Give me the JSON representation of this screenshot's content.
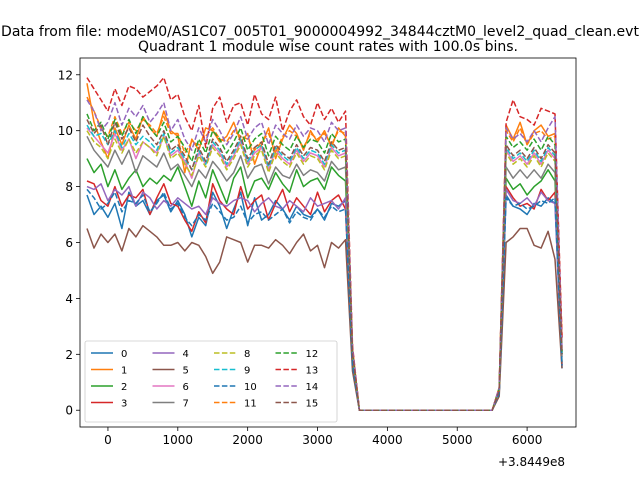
{
  "suptitle": "Data from file: modeM0/AS1C07_005T01_9000004992_34844cztM0_level2_quad_clean.evt",
  "chart_data": {
    "type": "line",
    "title": "Quadrant 1 module wise count rates with 100.0s bins.",
    "xlabel": "",
    "ylabel": "",
    "x_offset_label": "+3.8449e8",
    "xlim": [
      -400,
      6700
    ],
    "ylim": [
      -0.6,
      12.6
    ],
    "xticks": [
      0,
      1000,
      2000,
      3000,
      4000,
      5000,
      6000
    ],
    "yticks": [
      0,
      2,
      4,
      6,
      8,
      10,
      12
    ],
    "grid": false,
    "legend_position": "lower-left",
    "legend_columns": 4,
    "x": [
      -300,
      -200,
      -100,
      0,
      100,
      200,
      300,
      400,
      500,
      600,
      700,
      800,
      900,
      1000,
      1100,
      1200,
      1300,
      1400,
      1500,
      1600,
      1700,
      1800,
      1900,
      2000,
      2100,
      2200,
      2300,
      2400,
      2500,
      2600,
      2700,
      2800,
      2900,
      3000,
      3100,
      3200,
      3300,
      3400,
      3500,
      3600,
      3700,
      3800,
      3900,
      4000,
      4100,
      4200,
      4300,
      4400,
      4500,
      4600,
      4700,
      4800,
      4900,
      5000,
      5100,
      5200,
      5300,
      5400,
      5500,
      5600,
      5700,
      5800,
      5900,
      6000,
      6100,
      6200,
      6300,
      6400,
      6500
    ],
    "series": [
      {
        "name": "0",
        "color": "#1f77b4",
        "dash": "solid",
        "values": [
          7.7,
          7.0,
          7.3,
          6.9,
          7.4,
          6.5,
          7.8,
          7.3,
          7.5,
          7.0,
          7.5,
          7.7,
          7.1,
          7.5,
          7.0,
          6.2,
          6.9,
          6.6,
          7.8,
          7.3,
          6.5,
          7.2,
          7.8,
          6.6,
          7.6,
          6.8,
          7.0,
          7.5,
          7.2,
          6.8,
          7.3,
          7.0,
          6.9,
          7.2,
          6.8,
          7.4,
          7.3,
          7.5,
          1.6,
          0,
          0,
          0,
          0,
          0,
          0,
          0,
          0,
          0,
          0,
          0,
          0,
          0,
          0,
          0,
          0,
          0,
          0,
          0,
          0,
          0.6,
          7.7,
          7.3,
          7.2,
          7.0,
          7.4,
          7.3,
          7.6,
          7.4,
          1.5
        ]
      },
      {
        "name": "1",
        "color": "#ff7f0e",
        "dash": "solid",
        "values": [
          11.7,
          10.3,
          9.6,
          9.0,
          10.1,
          9.5,
          10.2,
          9.7,
          10.5,
          10.1,
          9.8,
          10.7,
          10.0,
          9.8,
          8.5,
          9.7,
          9.3,
          10.1,
          10.0,
          9.6,
          9.8,
          10.3,
          9.6,
          9.9,
          8.8,
          9.5,
          10.1,
          9.0,
          9.7,
          10.2,
          9.9,
          9.3,
          10.0,
          9.6,
          10.0,
          9.4,
          10.1,
          9.8,
          2.2,
          0,
          0,
          0,
          0,
          0,
          0,
          0,
          0,
          0,
          0,
          0,
          0,
          0,
          0,
          0,
          0,
          0,
          0,
          0,
          0,
          0.8,
          10.2,
          9.7,
          10.3,
          9.5,
          10.0,
          10.2,
          9.8,
          9.9,
          2.6
        ]
      },
      {
        "name": "2",
        "color": "#2ca02c",
        "dash": "solid",
        "values": [
          9.0,
          8.5,
          8.8,
          8.0,
          8.6,
          7.9,
          8.3,
          8.6,
          8.0,
          8.3,
          8.1,
          8.4,
          8.2,
          8.7,
          8.0,
          7.3,
          8.2,
          7.6,
          8.6,
          8.0,
          7.4,
          8.3,
          8.7,
          7.6,
          8.2,
          8.3,
          7.9,
          8.5,
          8.1,
          7.8,
          8.6,
          8.0,
          8.2,
          8.3,
          7.9,
          8.7,
          8.4,
          8.2,
          1.8,
          0,
          0,
          0,
          0,
          0,
          0,
          0,
          0,
          0,
          0,
          0,
          0,
          0,
          0,
          0,
          0,
          0,
          0,
          0,
          0,
          0.7,
          8.3,
          7.9,
          8.1,
          7.7,
          8.0,
          8.2,
          8.6,
          8.2,
          1.7
        ]
      },
      {
        "name": "3",
        "color": "#d62728",
        "dash": "solid",
        "values": [
          8.2,
          8.1,
          7.5,
          7.3,
          8.0,
          7.3,
          7.7,
          7.6,
          7.9,
          7.0,
          7.6,
          8.1,
          7.4,
          7.3,
          6.8,
          6.4,
          7.1,
          6.7,
          8.1,
          7.5,
          7.2,
          7.0,
          8.0,
          7.2,
          7.5,
          7.7,
          6.8,
          7.4,
          7.9,
          7.1,
          7.6,
          7.3,
          7.0,
          7.8,
          7.1,
          7.5,
          7.7,
          7.2,
          1.7,
          0,
          0,
          0,
          0,
          0,
          0,
          0,
          0,
          0,
          0,
          0,
          0,
          0,
          0,
          0,
          0,
          0,
          0,
          0,
          0,
          0.7,
          8.0,
          7.6,
          7.3,
          7.4,
          7.2,
          7.9,
          7.5,
          7.8,
          1.6
        ]
      },
      {
        "name": "4",
        "color": "#9467bd",
        "dash": "solid",
        "values": [
          8.0,
          7.9,
          8.1,
          7.5,
          7.9,
          7.7,
          8.0,
          7.3,
          7.8,
          7.6,
          7.2,
          7.5,
          7.3,
          7.6,
          7.4,
          7.2,
          7.3,
          7.0,
          7.6,
          7.4,
          7.3,
          7.5,
          7.6,
          7.5,
          7.1,
          7.4,
          7.6,
          7.3,
          7.2,
          7.5,
          7.3,
          7.1,
          7.6,
          7.3,
          7.4,
          7.5,
          7.2,
          7.6,
          1.7,
          0,
          0,
          0,
          0,
          0,
          0,
          0,
          0,
          0,
          0,
          0,
          0,
          0,
          0,
          0,
          0,
          0,
          0,
          0,
          0,
          0.7,
          7.9,
          7.5,
          7.4,
          7.6,
          7.3,
          7.8,
          7.5,
          7.4,
          1.6
        ]
      },
      {
        "name": "5",
        "color": "#8c564b",
        "dash": "solid",
        "values": [
          6.5,
          5.8,
          6.3,
          6.0,
          6.3,
          5.7,
          6.5,
          6.2,
          6.6,
          6.4,
          6.2,
          5.9,
          5.9,
          6.0,
          5.7,
          6.0,
          5.9,
          5.5,
          4.9,
          5.3,
          6.2,
          6.1,
          6.0,
          5.3,
          5.9,
          5.9,
          5.8,
          6.1,
          5.9,
          5.6,
          6.0,
          6.3,
          5.7,
          5.9,
          5.1,
          6.0,
          5.8,
          6.1,
          1.4,
          0,
          0,
          0,
          0,
          0,
          0,
          0,
          0,
          0,
          0,
          0,
          0,
          0,
          0,
          0,
          0,
          0,
          0,
          0,
          0,
          0.5,
          6.0,
          6.2,
          6.5,
          6.5,
          5.9,
          5.8,
          6.4,
          5.4,
          1.5
        ]
      },
      {
        "name": "6",
        "color": "#e377c2",
        "dash": "solid",
        "values": [
          10.1,
          9.8,
          9.5,
          9.2,
          9.9,
          9.3,
          9.7,
          9.0,
          9.6,
          9.4,
          9.2,
          9.8,
          9.1,
          9.3,
          8.9,
          8.3,
          9.2,
          8.8,
          9.5,
          9.2,
          8.7,
          9.1,
          9.6,
          8.8,
          9.2,
          9.4,
          8.6,
          9.3,
          9.0,
          8.8,
          9.3,
          8.9,
          9.2,
          9.1,
          8.7,
          9.4,
          9.1,
          9.2,
          2.0,
          0,
          0,
          0,
          0,
          0,
          0,
          0,
          0,
          0,
          0,
          0,
          0,
          0,
          0,
          0,
          0,
          0,
          0,
          0,
          0,
          0.7,
          9.3,
          8.9,
          9.1,
          8.8,
          9.2,
          8.8,
          9.3,
          9.0,
          2.0
        ]
      },
      {
        "name": "7",
        "color": "#7f7f7f",
        "dash": "solid",
        "values": [
          9.8,
          9.3,
          9.0,
          8.7,
          9.3,
          8.8,
          9.3,
          8.5,
          9.1,
          8.9,
          8.7,
          9.2,
          8.6,
          8.8,
          8.4,
          8.0,
          8.6,
          8.3,
          8.9,
          8.6,
          8.2,
          8.5,
          9.1,
          8.3,
          8.7,
          8.8,
          8.1,
          8.7,
          8.4,
          8.3,
          8.8,
          8.4,
          8.6,
          8.5,
          8.2,
          8.9,
          8.6,
          8.7,
          1.9,
          0,
          0,
          0,
          0,
          0,
          0,
          0,
          0,
          0,
          0,
          0,
          0,
          0,
          0,
          0,
          0,
          0,
          0,
          0,
          0,
          0.7,
          8.7,
          8.3,
          8.6,
          8.3,
          8.6,
          8.3,
          8.8,
          8.5,
          1.9
        ]
      },
      {
        "name": "8",
        "color": "#bcbd22",
        "dash": "dashed",
        "values": [
          10.0,
          9.6,
          9.4,
          9.0,
          9.7,
          9.2,
          9.7,
          9.2,
          9.6,
          9.4,
          9.1,
          9.8,
          9.0,
          9.2,
          8.8,
          8.4,
          9.1,
          8.7,
          9.4,
          9.1,
          8.6,
          9.0,
          9.5,
          8.7,
          9.1,
          9.3,
          8.5,
          9.2,
          8.9,
          8.7,
          9.2,
          8.8,
          9.1,
          9.0,
          8.6,
          9.3,
          9.0,
          9.1,
          2.0,
          0,
          0,
          0,
          0,
          0,
          0,
          0,
          0,
          0,
          0,
          0,
          0,
          0,
          0,
          0,
          0,
          0,
          0,
          0,
          0,
          0.7,
          9.2,
          8.8,
          9.0,
          8.7,
          9.1,
          8.7,
          9.2,
          8.9,
          2.0
        ]
      },
      {
        "name": "9",
        "color": "#17becf",
        "dash": "dashed",
        "values": [
          10.2,
          9.8,
          9.9,
          9.5,
          10.0,
          9.4,
          9.9,
          9.5,
          9.8,
          9.6,
          9.3,
          9.9,
          9.2,
          9.4,
          9.0,
          8.6,
          9.3,
          8.8,
          9.6,
          9.3,
          8.8,
          9.2,
          9.7,
          8.9,
          9.3,
          9.5,
          8.7,
          9.4,
          9.1,
          8.9,
          9.4,
          9.0,
          9.3,
          9.2,
          8.8,
          9.5,
          9.2,
          9.3,
          2.0,
          0,
          0,
          0,
          0,
          0,
          0,
          0,
          0,
          0,
          0,
          0,
          0,
          0,
          0,
          0,
          0,
          0,
          0,
          0,
          0,
          0.7,
          9.4,
          9.0,
          9.2,
          8.9,
          9.3,
          8.9,
          9.4,
          9.1,
          2.0
        ]
      },
      {
        "name": "10",
        "color": "#1f77b4",
        "dash": "dashed",
        "values": [
          7.9,
          7.6,
          7.2,
          7.4,
          7.8,
          7.1,
          7.5,
          7.4,
          7.7,
          7.1,
          7.4,
          7.8,
          7.2,
          7.4,
          6.9,
          6.6,
          7.0,
          6.8,
          7.4,
          7.1,
          6.8,
          6.9,
          7.3,
          6.7,
          7.0,
          7.1,
          6.8,
          7.0,
          7.2,
          6.7,
          7.1,
          6.9,
          6.8,
          7.2,
          6.9,
          7.3,
          7.1,
          7.2,
          1.6,
          0,
          0,
          0,
          0,
          0,
          0,
          0,
          0,
          0,
          0,
          0,
          0,
          0,
          0,
          0,
          0,
          0,
          0,
          0,
          0,
          0.6,
          7.6,
          7.3,
          7.4,
          7.2,
          7.3,
          7.5,
          7.4,
          7.6,
          1.6
        ]
      },
      {
        "name": "11",
        "color": "#ff7f0e",
        "dash": "dashed",
        "values": [
          11.2,
          10.7,
          10.1,
          9.8,
          10.5,
          9.9,
          10.3,
          10.0,
          10.4,
          10.2,
          9.9,
          10.5,
          9.9,
          9.9,
          9.2,
          9.6,
          9.5,
          9.8,
          10.1,
          9.7,
          9.6,
          10.0,
          9.8,
          9.7,
          9.3,
          9.6,
          9.9,
          9.2,
          9.8,
          10.0,
          9.8,
          9.4,
          9.9,
          9.7,
          9.9,
          9.5,
          10.0,
          9.9,
          2.2,
          0,
          0,
          0,
          0,
          0,
          0,
          0,
          0,
          0,
          0,
          0,
          0,
          0,
          0,
          0,
          0,
          0,
          0,
          0,
          0,
          0.8,
          10.0,
          9.6,
          10.1,
          9.5,
          9.9,
          10.0,
          9.7,
          9.8,
          2.5
        ]
      },
      {
        "name": "12",
        "color": "#2ca02c",
        "dash": "dashed",
        "values": [
          10.6,
          10.0,
          10.3,
          9.7,
          10.4,
          9.8,
          10.4,
          9.9,
          10.5,
          10.1,
          9.8,
          10.3,
          9.6,
          9.8,
          9.4,
          8.9,
          9.7,
          9.2,
          10.0,
          9.7,
          9.2,
          9.6,
          10.1,
          9.3,
          9.7,
          9.9,
          9.1,
          9.8,
          9.5,
          9.3,
          9.8,
          9.4,
          9.7,
          9.6,
          9.2,
          9.9,
          9.6,
          9.7,
          2.1,
          0,
          0,
          0,
          0,
          0,
          0,
          0,
          0,
          0,
          0,
          0,
          0,
          0,
          0,
          0,
          0,
          0,
          0,
          0,
          0,
          0.8,
          9.8,
          9.4,
          9.6,
          9.3,
          9.7,
          9.3,
          9.8,
          9.5,
          2.1
        ]
      },
      {
        "name": "13",
        "color": "#d62728",
        "dash": "dashed",
        "values": [
          11.9,
          11.5,
          11.1,
          10.7,
          11.5,
          10.9,
          11.6,
          11.5,
          11.2,
          11.4,
          11.6,
          11.9,
          11.1,
          11.3,
          10.5,
          10.0,
          10.9,
          9.4,
          10.8,
          11.2,
          10.3,
          10.9,
          11.0,
          10.2,
          11.3,
          10.6,
          10.4,
          11.2,
          10.0,
          10.7,
          11.1,
          10.5,
          10.2,
          11.0,
          10.4,
          10.8,
          10.3,
          10.7,
          2.3,
          0,
          0,
          0,
          0,
          0,
          0,
          0,
          0,
          0,
          0,
          0,
          0,
          0,
          0,
          0,
          0,
          0,
          0,
          0,
          0,
          0.8,
          10.3,
          11.1,
          10.5,
          10.4,
          10.2,
          10.8,
          10.7,
          10.6,
          2.6
        ]
      },
      {
        "name": "14",
        "color": "#9467bd",
        "dash": "dashed",
        "values": [
          11.1,
          10.7,
          10.0,
          10.3,
          11.0,
          10.2,
          10.8,
          10.5,
          10.9,
          10.3,
          10.6,
          11.0,
          10.0,
          10.4,
          9.7,
          9.3,
          10.1,
          9.6,
          10.4,
          10.0,
          9.5,
          9.9,
          10.5,
          9.7,
          10.1,
          10.3,
          9.5,
          10.2,
          9.9,
          9.7,
          10.2,
          9.8,
          10.1,
          10.0,
          9.6,
          10.3,
          10.0,
          10.1,
          2.2,
          0,
          0,
          0,
          0,
          0,
          0,
          0,
          0,
          0,
          0,
          0,
          0,
          0,
          0,
          0,
          0,
          0,
          0,
          0,
          0,
          0.8,
          10.1,
          9.7,
          9.9,
          9.6,
          10.0,
          9.6,
          10.1,
          10.5,
          2.2
        ]
      },
      {
        "name": "15",
        "color": "#8c564b",
        "dash": "dashed",
        "values": [
          10.4,
          9.9,
          10.2,
          9.5,
          10.3,
          9.7,
          10.1,
          9.6,
          10.2,
          9.8,
          9.5,
          10.0,
          9.3,
          9.5,
          9.1,
          8.6,
          9.4,
          8.9,
          9.7,
          9.4,
          8.9,
          9.3,
          9.8,
          9.0,
          9.4,
          9.6,
          8.8,
          9.5,
          9.2,
          9.0,
          9.5,
          9.1,
          9.4,
          9.3,
          8.9,
          9.6,
          9.3,
          9.4,
          2.0,
          0,
          0,
          0,
          0,
          0,
          0,
          0,
          0,
          0,
          0,
          0,
          0,
          0,
          0,
          0,
          0,
          0,
          0,
          0,
          0,
          0.7,
          9.5,
          9.1,
          9.3,
          9.0,
          9.4,
          9.0,
          9.5,
          9.2,
          2.0
        ]
      }
    ]
  }
}
